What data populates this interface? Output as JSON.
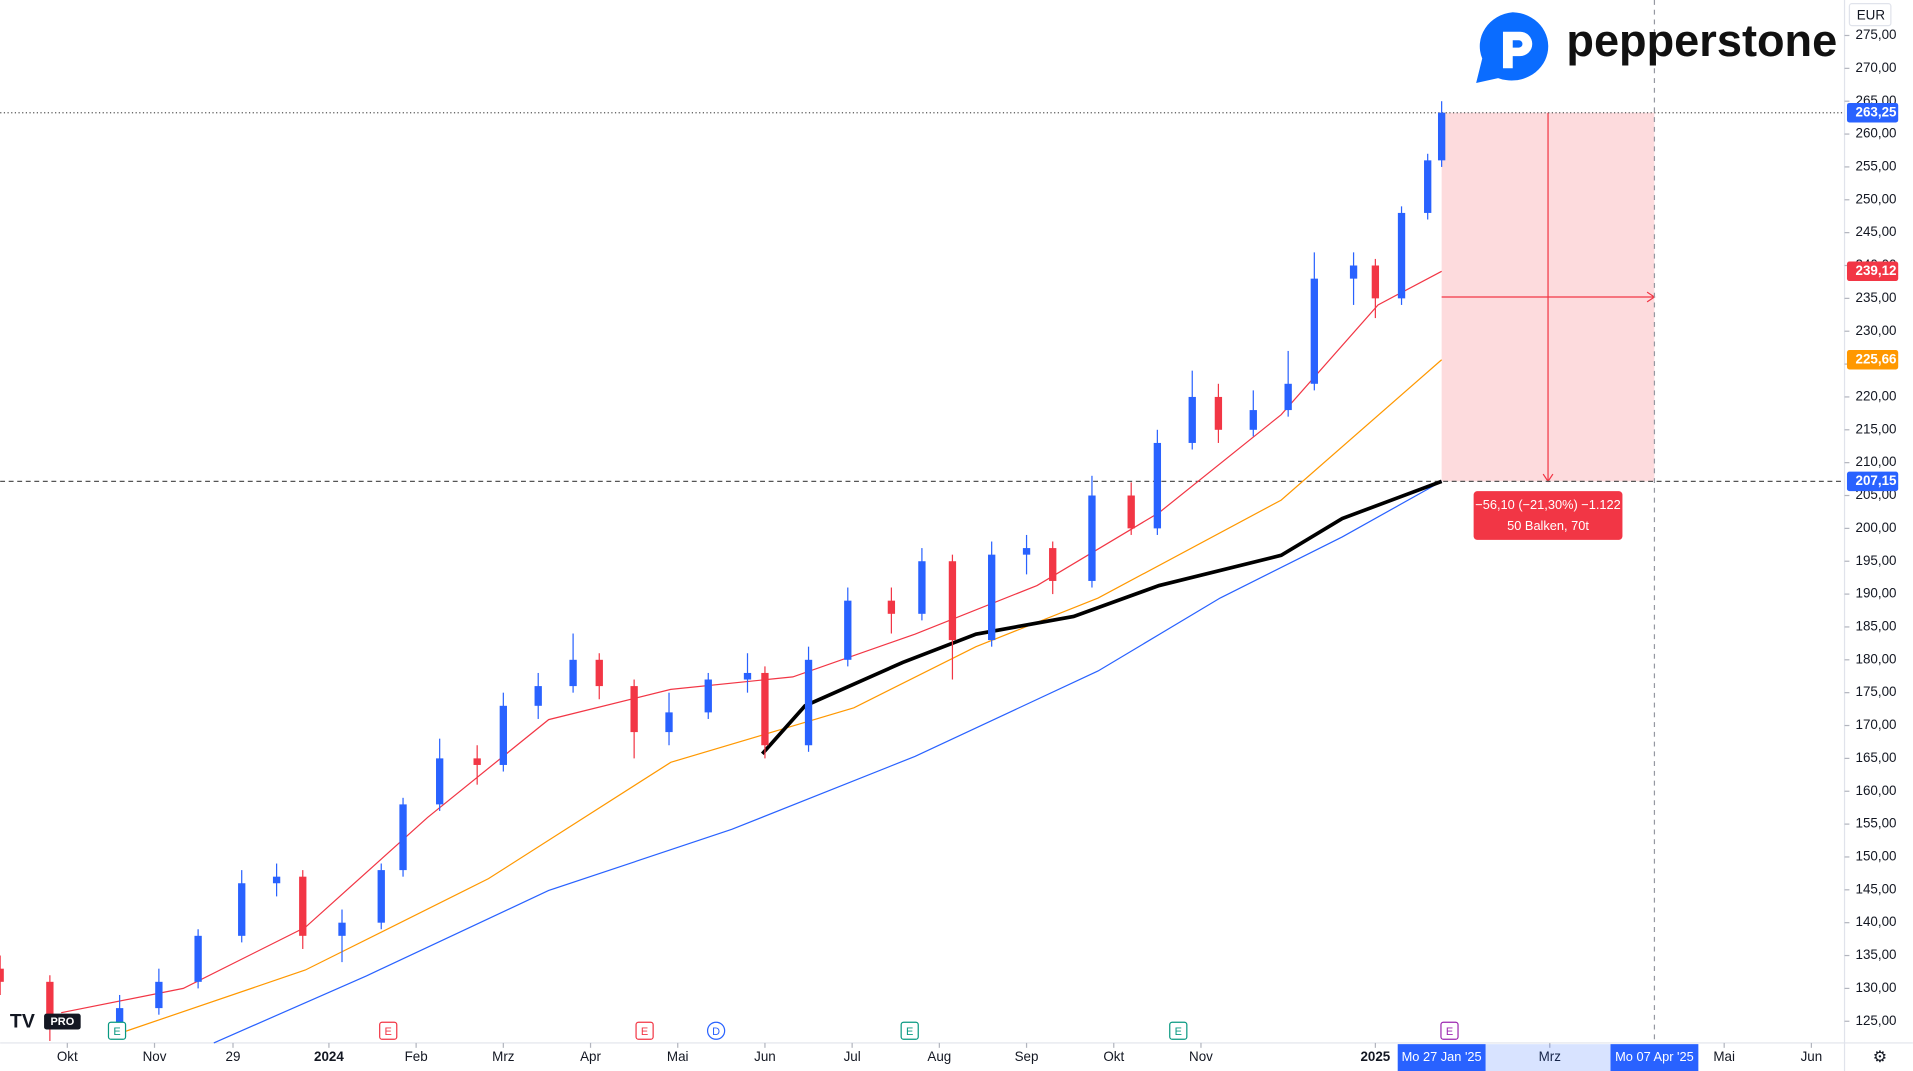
{
  "chart_data": {
    "type": "candlestick",
    "brand": "pepperstone",
    "currency": "EUR",
    "badge": "PRO",
    "xlim": [
      -0.77,
      20.38
    ],
    "ylim": [
      121.7,
      280.4
    ],
    "xticks": [
      {
        "value": 0,
        "label": "Okt"
      },
      {
        "value": 1,
        "label": "Nov"
      },
      {
        "value": 1.9,
        "label": "29"
      },
      {
        "value": 3,
        "label": "2024"
      },
      {
        "value": 4,
        "label": "Feb"
      },
      {
        "value": 5,
        "label": "Mrz"
      },
      {
        "value": 6,
        "label": "Apr"
      },
      {
        "value": 7,
        "label": "Mai"
      },
      {
        "value": 8,
        "label": "Jun"
      },
      {
        "value": 9,
        "label": "Jul"
      },
      {
        "value": 10,
        "label": "Aug"
      },
      {
        "value": 11,
        "label": "Sep"
      },
      {
        "value": 12,
        "label": "Okt"
      },
      {
        "value": 13,
        "label": "Nov"
      },
      {
        "value": 15,
        "label": "2025"
      },
      {
        "value": 17,
        "label": "Mrz"
      },
      {
        "value": 19,
        "label": "Mai"
      },
      {
        "value": 20,
        "label": "Jun"
      }
    ],
    "yticks": [
      {
        "value": 125,
        "label": "125,00"
      },
      {
        "value": 130,
        "label": "130,00"
      },
      {
        "value": 135,
        "label": "135,00"
      },
      {
        "value": 140,
        "label": "140,00"
      },
      {
        "value": 145,
        "label": "145,00"
      },
      {
        "value": 150,
        "label": "150,00"
      },
      {
        "value": 155,
        "label": "155,00"
      },
      {
        "value": 160,
        "label": "160,00"
      },
      {
        "value": 165,
        "label": "165,00"
      },
      {
        "value": 170,
        "label": "170,00"
      },
      {
        "value": 175,
        "label": "175,00"
      },
      {
        "value": 180,
        "label": "180,00"
      },
      {
        "value": 185,
        "label": "185,00"
      },
      {
        "value": 190,
        "label": "190,00"
      },
      {
        "value": 195,
        "label": "195,00"
      },
      {
        "value": 200,
        "label": "200,00"
      },
      {
        "value": 205,
        "label": "205,00"
      },
      {
        "value": 210,
        "label": "210,00"
      },
      {
        "value": 215,
        "label": "215,00"
      },
      {
        "value": 220,
        "label": "220,00"
      },
      {
        "value": 225,
        "label": "225,00"
      },
      {
        "value": 230,
        "label": "230,00"
      },
      {
        "value": 235,
        "label": "235,00"
      },
      {
        "value": 240,
        "label": "240,00"
      },
      {
        "value": 245,
        "label": "245,00"
      },
      {
        "value": 250,
        "label": "250,00"
      },
      {
        "value": 255,
        "label": "255,00"
      },
      {
        "value": 260,
        "label": "260,00"
      },
      {
        "value": 265,
        "label": "265,00"
      },
      {
        "value": 270,
        "label": "270,00"
      },
      {
        "value": 275,
        "label": "275,00"
      }
    ],
    "up_color": "#2962ff",
    "down_color": "#f23645",
    "candles": {
      "x": [
        -0.77,
        -0.2,
        0.6,
        1.05,
        1.5,
        2.0,
        2.4,
        2.7,
        3.15,
        3.6,
        3.85,
        4.27,
        4.7,
        5.0,
        5.4,
        5.8,
        6.1,
        6.5,
        6.9,
        7.35,
        7.8,
        8.0,
        8.5,
        8.95,
        9.45,
        9.8,
        10.15,
        10.6,
        11.0,
        11.3,
        11.75,
        12.2,
        12.5,
        12.9,
        13.2,
        13.6,
        14.0,
        14.3,
        14.75,
        15.0,
        15.3,
        15.6,
        15.76
      ],
      "open": [
        133,
        131,
        124,
        127,
        131,
        138,
        146,
        147,
        138,
        140,
        148,
        158,
        165,
        164,
        173,
        176,
        180,
        176,
        169,
        172,
        177,
        178,
        167,
        180,
        189,
        187,
        195,
        183,
        196,
        197,
        192,
        205,
        200,
        213,
        220,
        215,
        218,
        222,
        238,
        240,
        235,
        248,
        256
      ],
      "high": [
        135,
        132,
        129,
        133,
        139,
        148,
        149,
        148,
        142,
        149,
        159,
        168,
        167,
        175,
        178,
        184,
        181,
        177,
        175,
        178,
        181,
        179,
        182,
        191,
        191,
        197,
        196,
        198,
        199,
        198,
        208,
        207,
        215,
        224,
        222,
        221,
        227,
        242,
        242,
        241,
        249,
        257,
        265
      ],
      "low": [
        129,
        122,
        123,
        126,
        130,
        137,
        144,
        136,
        134,
        139,
        147,
        157,
        161,
        163,
        171,
        175,
        174,
        165,
        167,
        171,
        175,
        165,
        166,
        179,
        184,
        186,
        177,
        182,
        193,
        190,
        191,
        199,
        199,
        212,
        213,
        214,
        217,
        221,
        234,
        232,
        234,
        247,
        255
      ],
      "close": [
        131,
        124,
        127,
        131,
        138,
        146,
        147,
        138,
        140,
        148,
        158,
        165,
        164,
        173,
        176,
        180,
        176,
        169,
        172,
        177,
        178,
        167,
        180,
        189,
        187,
        195,
        183,
        196,
        197,
        192,
        205,
        200,
        213,
        220,
        215,
        218,
        222,
        238,
        240,
        235,
        248,
        256,
        263.25
      ]
    },
    "series": [
      {
        "color": "#f23645",
        "width": 1,
        "x": [
          -0.07,
          1.33,
          2.73,
          4.13,
          5.52,
          6.92,
          8.32,
          9.72,
          11.12,
          12.52,
          13.92,
          15.03,
          15.76
        ],
        "values": [
          126.3,
          130,
          139.3,
          156,
          170.9,
          175.5,
          177.4,
          183.9,
          191.3,
          202.4,
          217.3,
          234,
          239.12
        ]
      },
      {
        "color": "#ff9800",
        "width": 1,
        "x": [
          0.63,
          2.73,
          4.83,
          6.92,
          9.02,
          10.42,
          11.82,
          13.92,
          15.76
        ],
        "values": [
          123.3,
          132.8,
          146.7,
          164.4,
          172.7,
          182,
          189.4,
          204.3,
          225.66
        ]
      },
      {
        "color": "#2962ff",
        "width": 1,
        "x": [
          1.68,
          3.43,
          5.52,
          7.62,
          9.72,
          11.82,
          13.22,
          14.62,
          15.76
        ],
        "values": [
          121.7,
          131.9,
          144.9,
          154.2,
          165.3,
          178.3,
          189.4,
          198.7,
          207.15
        ]
      },
      {
        "color": "#000000",
        "width": 3,
        "x": [
          7.97,
          8.46,
          9.58,
          10.42,
          11.54,
          12.52,
          13.92,
          14.62,
          15.76
        ],
        "values": [
          165.7,
          173,
          179.6,
          183.9,
          186.6,
          191.3,
          195.9,
          201.5,
          207.15
        ]
      }
    ],
    "price_labels": [
      {
        "value": 263.25,
        "label": "263,25",
        "color": "#2962ff"
      },
      {
        "value": 239.12,
        "label": "239,12",
        "color": "#f23645"
      },
      {
        "value": 225.66,
        "label": "225,66",
        "color": "#ff9800"
      },
      {
        "value": 207.15,
        "label": "207,15",
        "color": "#2962ff"
      }
    ],
    "measurement": {
      "from": 15.76,
      "to": 18.2,
      "top": 263.25,
      "bottom": 207.15,
      "line1": "−56,10 (−21,30%) −1.122",
      "line2": "50 Balken, 70t",
      "start_label": "Mo 27 Jan '25",
      "end_label": "Mo 07 Apr '25"
    },
    "events": [
      {
        "x": 0.57,
        "label": "E",
        "color": "#089981"
      },
      {
        "x": 3.68,
        "label": "E",
        "color": "#f23645"
      },
      {
        "x": 6.62,
        "label": "E",
        "color": "#f23645"
      },
      {
        "x": 7.44,
        "label": "D",
        "color": "#2962ff"
      },
      {
        "x": 9.66,
        "label": "E",
        "color": "#089981"
      },
      {
        "x": 12.74,
        "label": "E",
        "color": "#089981"
      },
      {
        "x": 15.85,
        "label": "E",
        "color": "#9c27b0"
      }
    ]
  }
}
